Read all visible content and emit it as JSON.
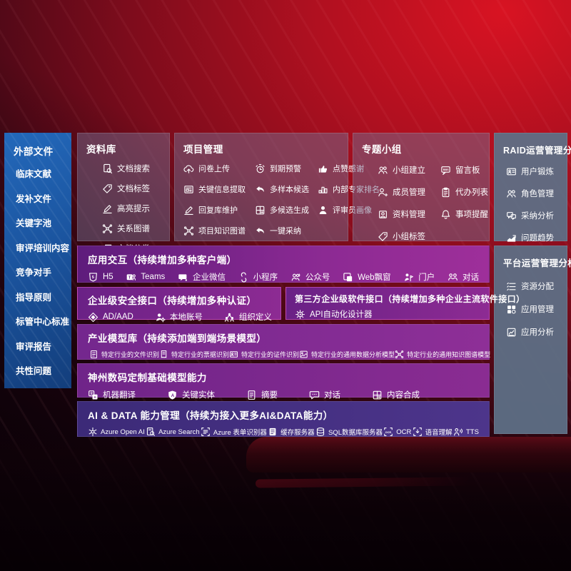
{
  "left_panel": {
    "title": "外部文件",
    "items": [
      "临床文献",
      "发补文件",
      "关键字池",
      "审评培训内容",
      "竞争对手",
      "指导原则",
      "标管中心标准",
      "审评报告",
      "共性问题"
    ]
  },
  "sections": {
    "library": {
      "title": "资料库",
      "items": [
        {
          "icon": "doc-search",
          "label": "文档搜索"
        },
        {
          "icon": "tag",
          "label": "文档标签"
        },
        {
          "icon": "pen",
          "label": "高亮提示"
        },
        {
          "icon": "network",
          "label": "关系图谱"
        },
        {
          "icon": "docs",
          "label": "文档分类"
        }
      ]
    },
    "project": {
      "title": "项目管理",
      "items": [
        {
          "icon": "cloud-upload",
          "label": "问卷上传"
        },
        {
          "icon": "alarm",
          "label": "到期预警"
        },
        {
          "icon": "thumb-up",
          "label": "点赞感谢"
        },
        {
          "icon": "card-extract",
          "label": "关键信息提取"
        },
        {
          "icon": "reply-arrow",
          "label": "多样本候选"
        },
        {
          "icon": "podium",
          "label": "内部专家排名"
        },
        {
          "icon": "pen",
          "label": "回复库维护"
        },
        {
          "icon": "grid-plus",
          "label": "多候选生成"
        },
        {
          "icon": "user-solid",
          "label": "评审员画像"
        },
        {
          "icon": "network",
          "label": "项目知识图谱"
        },
        {
          "icon": "reply-arrow",
          "label": "一键采纳"
        }
      ]
    },
    "groups": {
      "title": "专题小组",
      "items": [
        {
          "icon": "users",
          "label": "小组建立"
        },
        {
          "icon": "bbs",
          "label": "留言板"
        },
        {
          "icon": "user-plus",
          "label": "成员管理"
        },
        {
          "icon": "clipboard",
          "label": "代办列表"
        },
        {
          "icon": "archive",
          "label": "资料管理"
        },
        {
          "icon": "bell",
          "label": "事项提醒"
        },
        {
          "icon": "tag",
          "label": "小组标签"
        }
      ]
    },
    "raid": {
      "title": "RAID运营管理分析",
      "items": [
        {
          "icon": "id-card",
          "label": "用户锻炼"
        },
        {
          "icon": "users",
          "label": "角色管理"
        },
        {
          "icon": "chat-qa",
          "label": "采纳分析"
        },
        {
          "icon": "trend",
          "label": "问题趋势"
        }
      ]
    },
    "platform": {
      "title": "平台运营管理分析",
      "items": [
        {
          "icon": "list",
          "label": "资源分配"
        },
        {
          "icon": "grid",
          "label": "应用管理"
        },
        {
          "icon": "chart-doc",
          "label": "应用分析"
        }
      ]
    },
    "interaction": {
      "title": "应用交互（持续增加多种客户端）",
      "items": [
        {
          "icon": "h5",
          "label": "H5"
        },
        {
          "icon": "teams",
          "label": "Teams"
        },
        {
          "icon": "wechat",
          "label": "企业微信"
        },
        {
          "icon": "miniprogram",
          "label": "小程序"
        },
        {
          "icon": "official-account",
          "label": "公众号"
        },
        {
          "icon": "web-window",
          "label": "Web飘窗"
        },
        {
          "icon": "portal",
          "label": "门户"
        },
        {
          "icon": "dialog",
          "label": "对话"
        }
      ]
    },
    "security": {
      "title": "企业级安全接口（持续增加多种认证）",
      "items": [
        {
          "icon": "ad-shield",
          "label": "AD/AAD"
        },
        {
          "icon": "user-gear",
          "label": "本地账号"
        },
        {
          "icon": "org-users",
          "label": "组织定义"
        }
      ]
    },
    "third_party": {
      "title": "第三方企业级软件接口（持续增加多种企业主流软件接口）",
      "items": [
        {
          "icon": "api-gear",
          "label": "API自动化设计器"
        }
      ]
    },
    "industry_models": {
      "title": "产业模型库（持续添加端到端场景模型）",
      "items": [
        {
          "icon": "doc",
          "label": "特定行业的文件识别"
        },
        {
          "icon": "receipt",
          "label": "特定行业的票据识别"
        },
        {
          "icon": "id-card",
          "label": "特定行业的证件识别"
        },
        {
          "icon": "image-chart",
          "label": "特定行业的通用数据分析模型"
        },
        {
          "icon": "network",
          "label": "特定行业的通用知识图谱模型"
        }
      ]
    },
    "base_models": {
      "title": "神州数码定制基础模型能力",
      "items": [
        {
          "icon": "translate",
          "label": "机器翻译"
        },
        {
          "icon": "a-shield",
          "label": "关键实体"
        },
        {
          "icon": "summary-doc",
          "label": "摘要"
        },
        {
          "icon": "chat-dots",
          "label": "对话"
        },
        {
          "icon": "grid-plus",
          "label": "内容合成"
        }
      ]
    },
    "ai_data": {
      "title": "AI & DATA 能力管理（持续为接入更多AI&DATA能力）",
      "items": [
        {
          "icon": "openai",
          "label": "Azure Open AI"
        },
        {
          "icon": "azure-search",
          "label": "Azure Search"
        },
        {
          "icon": "form-recognizer",
          "label": "Azure 表单识别器"
        },
        {
          "icon": "cache-server",
          "label": "缓存服务器"
        },
        {
          "icon": "sql-db",
          "label": "SQL数据库服务器"
        },
        {
          "icon": "ocr",
          "label": "OCR"
        },
        {
          "icon": "speech",
          "label": "语音理解"
        },
        {
          "icon": "tts",
          "label": "TTS"
        }
      ]
    }
  },
  "colors": {
    "background_red": "#b01020",
    "left_panel_blue": "#1b55a0",
    "right_panel_grey": "#5d7086",
    "band_purple": "#8c2a93",
    "band_indigo": "#45307e",
    "accent_pink_border": "#ff6ee1"
  }
}
